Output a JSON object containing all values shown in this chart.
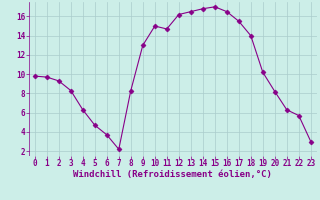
{
  "x": [
    0,
    1,
    2,
    3,
    4,
    5,
    6,
    7,
    8,
    9,
    10,
    11,
    12,
    13,
    14,
    15,
    16,
    17,
    18,
    19,
    20,
    21,
    22,
    23
  ],
  "y": [
    9.8,
    9.7,
    9.3,
    8.3,
    6.3,
    4.7,
    3.7,
    2.2,
    8.3,
    13.0,
    15.0,
    14.7,
    16.2,
    16.5,
    16.8,
    17.0,
    16.5,
    15.5,
    14.0,
    10.2,
    8.2,
    6.3,
    5.7,
    3.0
  ],
  "line_color": "#880088",
  "marker": "D",
  "marker_size": 2.5,
  "bg_color": "#cceee8",
  "grid_color": "#aacccc",
  "xlabel": "Windchill (Refroidissement éolien,°C)",
  "xlabel_fontsize": 6.5,
  "xlabel_color": "#880088",
  "tick_color": "#880088",
  "tick_fontsize": 5.5,
  "xlim": [
    -0.5,
    23.5
  ],
  "ylim": [
    1.5,
    17.5
  ],
  "yticks": [
    2,
    4,
    6,
    8,
    10,
    12,
    14,
    16
  ],
  "xticks": [
    0,
    1,
    2,
    3,
    4,
    5,
    6,
    7,
    8,
    9,
    10,
    11,
    12,
    13,
    14,
    15,
    16,
    17,
    18,
    19,
    20,
    21,
    22,
    23
  ]
}
